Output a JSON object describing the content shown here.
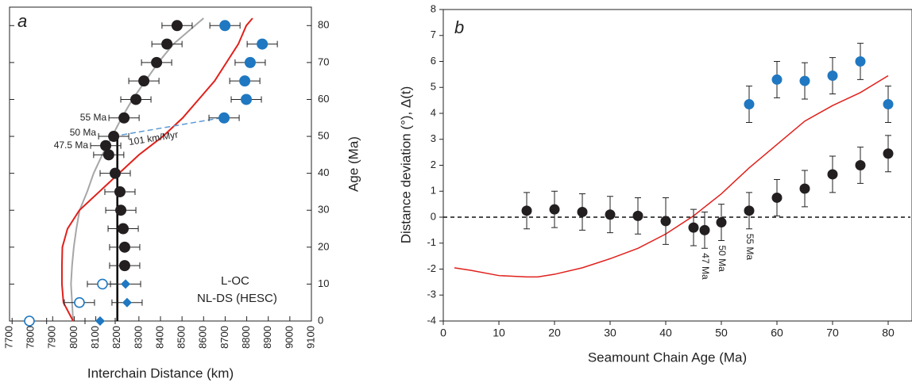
{
  "chart_data": [
    {
      "type": "scatter",
      "panel_label": "a",
      "x_label": "Interchain Distance (km)",
      "y_label": "Age (Ma)",
      "xlim": [
        7700,
        9100
      ],
      "xticks": [
        7700,
        7800,
        7900,
        8000,
        8100,
        8200,
        8300,
        8400,
        8500,
        8600,
        8700,
        8800,
        8900,
        9000,
        9100
      ],
      "ylim": [
        0,
        85
      ],
      "yticks": [
        0,
        10,
        20,
        30,
        40,
        50,
        60,
        70,
        80
      ],
      "series": [
        {
          "name": "L-OC",
          "color": "#231f20",
          "x": [
            8477,
            8430,
            8382,
            8323,
            8286,
            8231,
            8183,
            8146,
            8160,
            8190,
            8212,
            8216,
            8227,
            8234,
            8234
          ],
          "y": [
            80,
            75,
            70,
            65,
            60,
            55,
            50,
            47.5,
            45,
            40,
            35,
            30,
            25,
            20,
            15
          ],
          "xerr": [
            70,
            70,
            70,
            70,
            70,
            70,
            70,
            70,
            70,
            70,
            70,
            70,
            70,
            70,
            70
          ],
          "labels": [
            null,
            null,
            null,
            null,
            null,
            "55 Ma",
            "50 Ma",
            "47.5 Ma",
            null,
            null,
            null,
            null,
            null,
            null,
            null
          ]
        },
        {
          "name": "NL-DS (HESC)",
          "color": "#1f78c1",
          "x": [
            8699,
            8872,
            8816,
            8791,
            8798,
            8695,
            8131,
            8024,
            7792,
            8238,
            8245,
            8120
          ],
          "y": [
            80,
            75,
            70,
            65,
            60,
            55,
            10,
            5,
            0,
            10,
            5,
            0
          ],
          "xerr": [
            70,
            70,
            70,
            70,
            70,
            70,
            70,
            70,
            80,
            70,
            70,
            70
          ],
          "markers": [
            "circle",
            "circle",
            "circle",
            "circle",
            "circle",
            "circle",
            "open",
            "open",
            "open",
            "diamond",
            "diamond",
            "diamond"
          ]
        }
      ],
      "curves": [
        {
          "color": "#a6a6a6",
          "x": [
            7995,
            7990,
            7985,
            7990,
            7998,
            8010,
            8025,
            8060,
            8090,
            8130,
            8175,
            8220,
            8270,
            8330,
            8390,
            8460,
            8560,
            8600
          ],
          "y": [
            0,
            5,
            10,
            15,
            20,
            25,
            30,
            35,
            40,
            45,
            50,
            55,
            60,
            65,
            70,
            75,
            80,
            82
          ]
        },
        {
          "color": "#e0201b",
          "x": [
            7995,
            7950,
            7943,
            7943,
            7945,
            7969,
            8024,
            8116,
            8208,
            8300,
            8411,
            8503,
            8577,
            8651,
            8706,
            8761,
            8798,
            8827
          ],
          "y": [
            0,
            5,
            10,
            15,
            20,
            25,
            30,
            35,
            40,
            45,
            50,
            55,
            60,
            65,
            70,
            75,
            80,
            82
          ]
        },
        {
          "color": "#000000",
          "x": [
            8200,
            8200
          ],
          "y": [
            0,
            50
          ]
        }
      ],
      "trend": {
        "label": "101 km/Myr",
        "color": "#5b9bd5",
        "x": [
          8180,
          8680
        ],
        "y": [
          50,
          55
        ]
      }
    },
    {
      "type": "errorbar",
      "panel_label": "b",
      "x_label": "Seamount Chain Age (Ma)",
      "y_label": "Distance deviation (°), Δ(t)",
      "xlim": [
        0,
        84
      ],
      "xticks": [
        0,
        10,
        20,
        30,
        40,
        50,
        60,
        70,
        80
      ],
      "ylim": [
        -4,
        8
      ],
      "yticks": [
        -4,
        -3,
        -2,
        -1,
        0,
        1,
        2,
        3,
        4,
        5,
        6,
        7,
        8
      ],
      "hline": 0,
      "series": [
        {
          "color": "#231f20",
          "x": [
            15,
            20,
            25,
            30,
            35,
            40,
            45,
            47,
            50,
            55,
            60,
            65,
            70,
            75,
            80
          ],
          "values": [
            0.25,
            0.3,
            0.2,
            0.1,
            0.05,
            -0.15,
            -0.4,
            -0.5,
            -0.2,
            0.25,
            0.75,
            1.1,
            1.65,
            2.0,
            2.45
          ],
          "errors": [
            0.7,
            0.7,
            0.7,
            0.7,
            0.7,
            0.9,
            0.7,
            0.7,
            0.7,
            0.7,
            0.7,
            0.7,
            0.7,
            0.7,
            0.7
          ],
          "labels": [
            null,
            null,
            null,
            null,
            null,
            null,
            null,
            "47 Ma",
            "50 Ma",
            "55 Ma",
            null,
            null,
            null,
            null,
            null
          ]
        },
        {
          "color": "#1f78c1",
          "x": [
            55,
            60,
            65,
            70,
            75,
            80
          ],
          "values": [
            4.35,
            5.3,
            5.25,
            5.45,
            6.0,
            4.35
          ],
          "errors": [
            0.7,
            0.7,
            0.7,
            0.7,
            0.7,
            0.7
          ]
        }
      ],
      "curve": {
        "color": "#e0201b",
        "x": [
          2,
          5,
          10,
          15,
          17,
          20,
          25,
          30,
          35,
          40,
          45,
          50,
          55,
          60,
          65,
          70,
          75,
          80
        ],
        "values": [
          -1.95,
          -2.05,
          -2.25,
          -2.3,
          -2.3,
          -2.2,
          -1.95,
          -1.6,
          -1.2,
          -0.65,
          0.05,
          0.9,
          1.9,
          2.8,
          3.7,
          4.3,
          4.8,
          5.45
        ]
      }
    }
  ]
}
